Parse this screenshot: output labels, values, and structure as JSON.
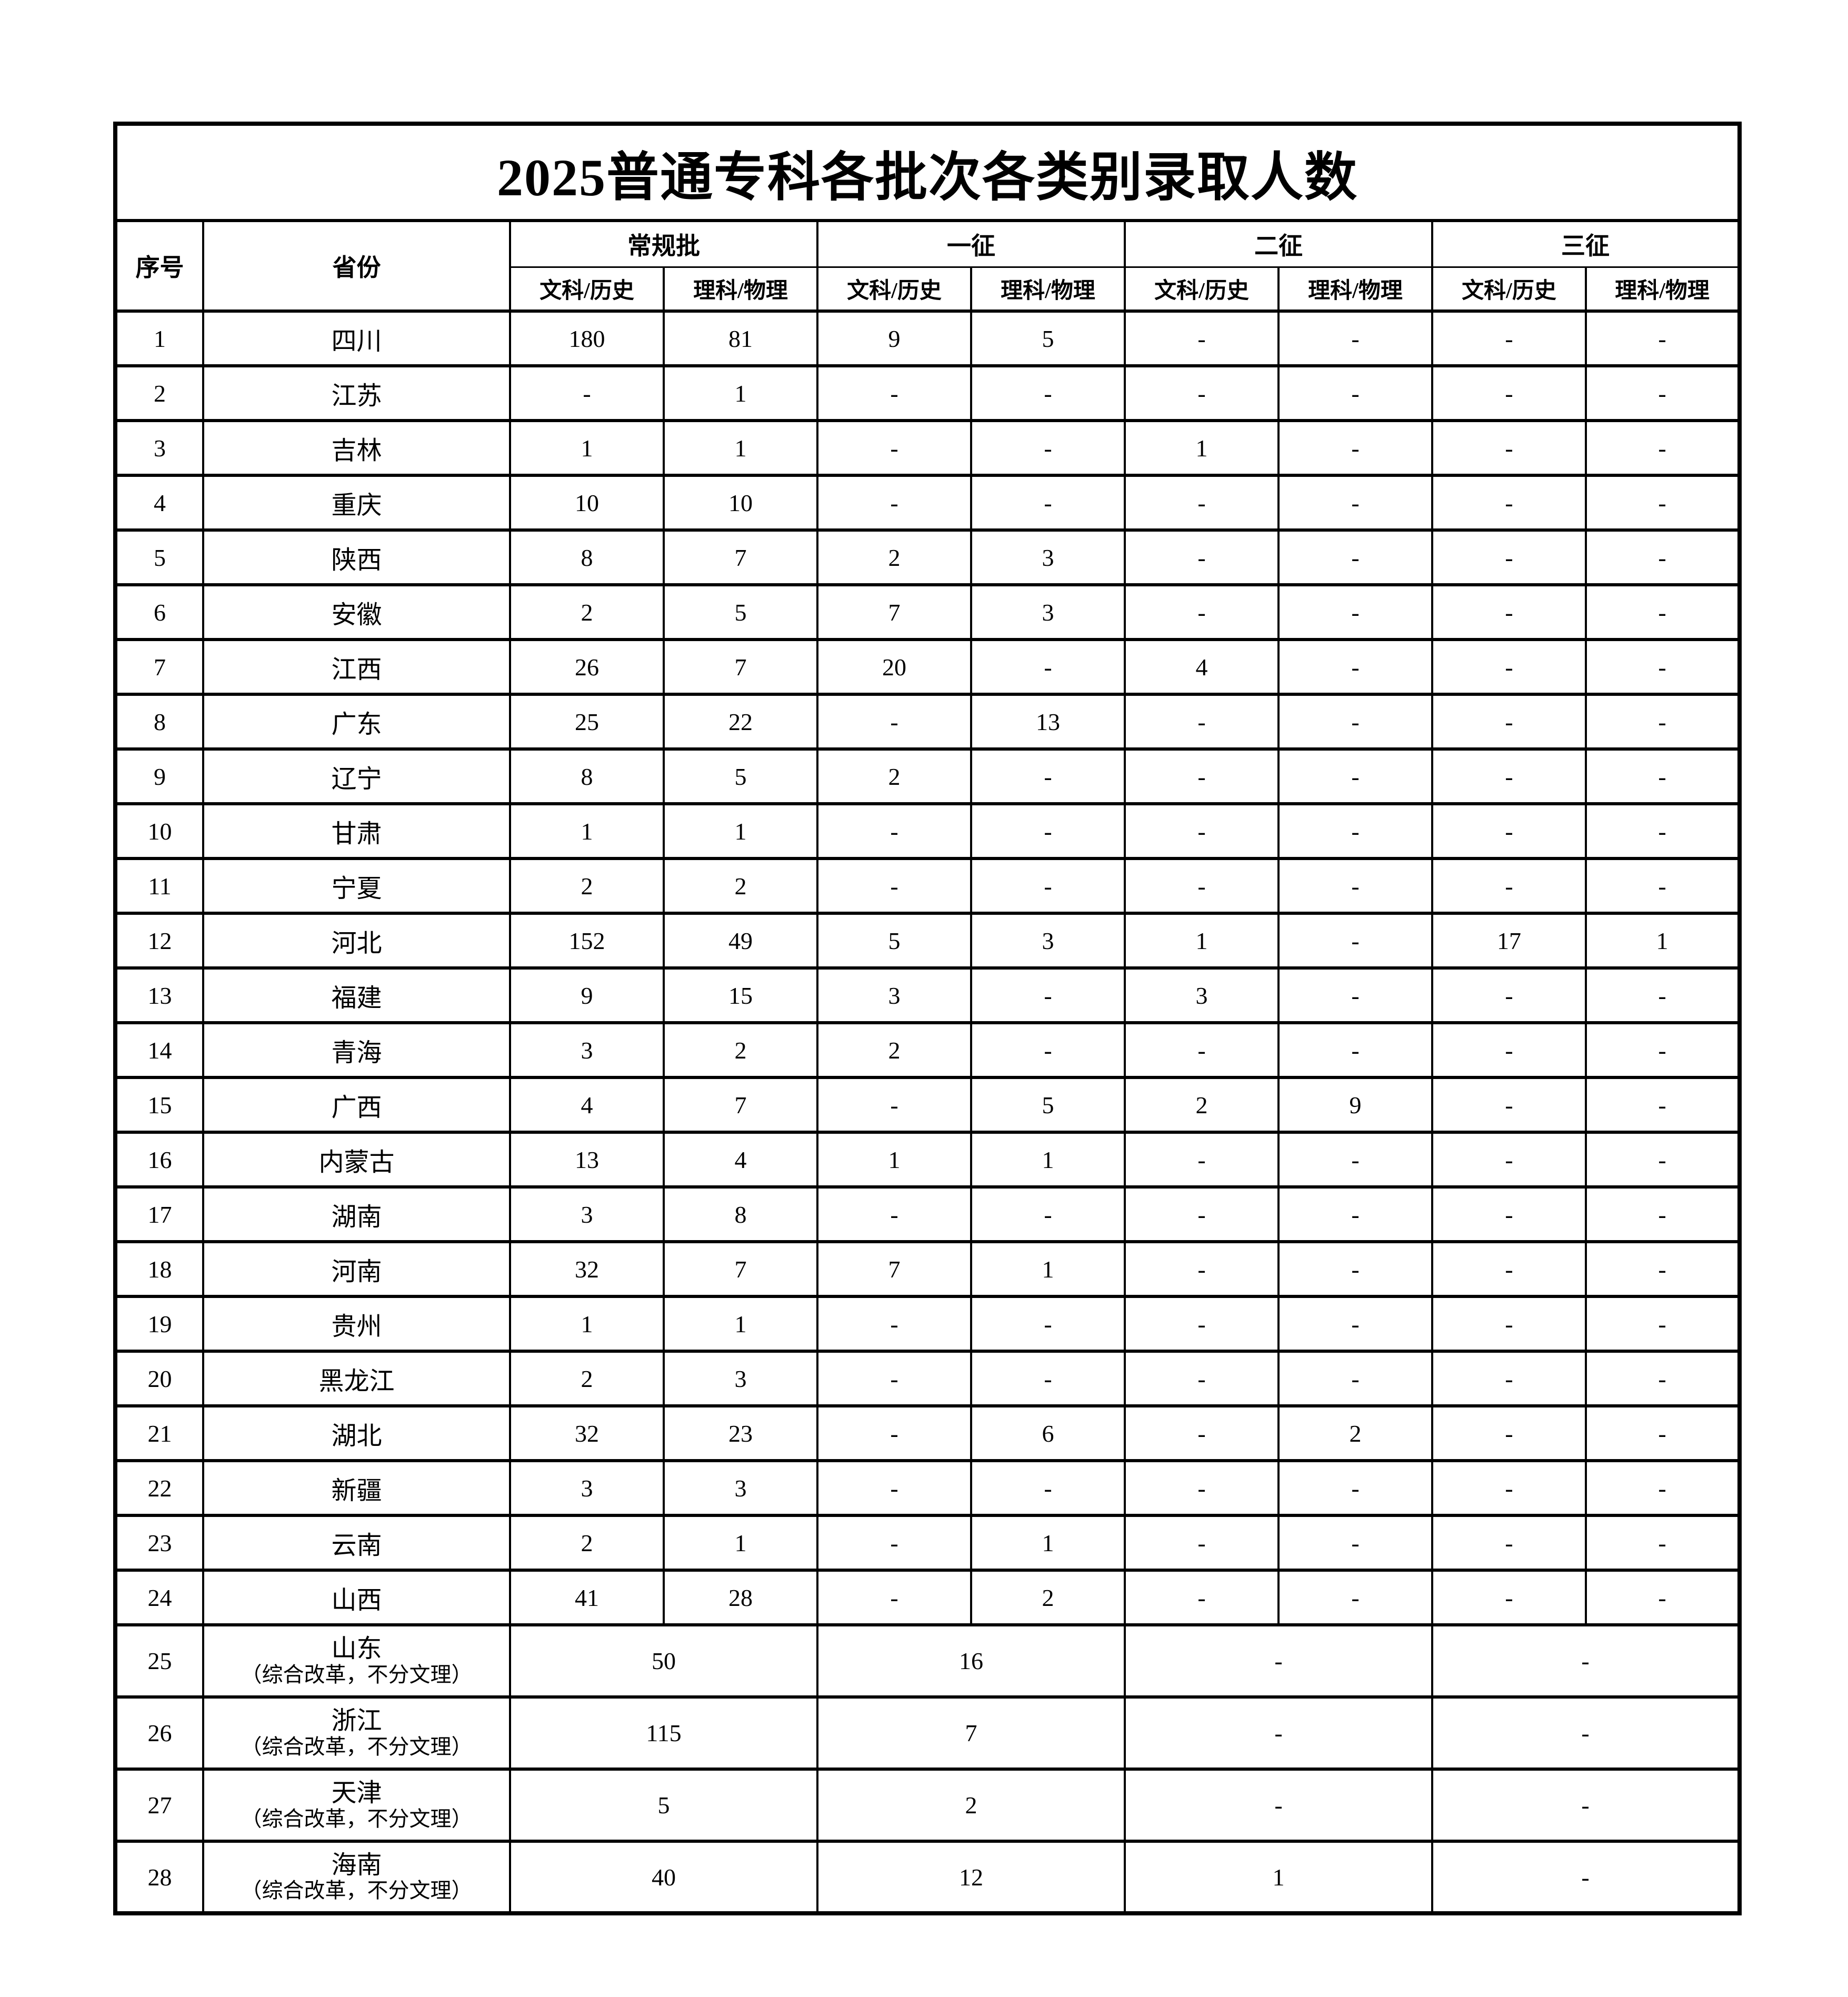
{
  "title": "2025普通专科各批次各类别录取人数",
  "columns": {
    "index": "序号",
    "province": "省份",
    "groups": [
      {
        "label": "常规批"
      },
      {
        "label": "一征"
      },
      {
        "label": "二征"
      },
      {
        "label": "三征"
      }
    ],
    "sub_wen": "文科/历史",
    "sub_li": "理科/物理"
  },
  "rows": [
    {
      "no": "1",
      "province": "四川",
      "values": [
        "180",
        "81",
        "9",
        "5",
        "-",
        "-",
        "-",
        "-"
      ]
    },
    {
      "no": "2",
      "province": "江苏",
      "values": [
        "-",
        "1",
        "-",
        "-",
        "-",
        "-",
        "-",
        "-"
      ]
    },
    {
      "no": "3",
      "province": "吉林",
      "values": [
        "1",
        "1",
        "-",
        "-",
        "1",
        "-",
        "-",
        "-"
      ]
    },
    {
      "no": "4",
      "province": "重庆",
      "values": [
        "10",
        "10",
        "-",
        "-",
        "-",
        "-",
        "-",
        "-"
      ]
    },
    {
      "no": "5",
      "province": "陕西",
      "values": [
        "8",
        "7",
        "2",
        "3",
        "-",
        "-",
        "-",
        "-"
      ]
    },
    {
      "no": "6",
      "province": "安徽",
      "values": [
        "2",
        "5",
        "7",
        "3",
        "-",
        "-",
        "-",
        "-"
      ]
    },
    {
      "no": "7",
      "province": "江西",
      "values": [
        "26",
        "7",
        "20",
        "-",
        "4",
        "-",
        "-",
        "-"
      ]
    },
    {
      "no": "8",
      "province": "广东",
      "values": [
        "25",
        "22",
        "-",
        "13",
        "-",
        "-",
        "-",
        "-"
      ]
    },
    {
      "no": "9",
      "province": "辽宁",
      "values": [
        "8",
        "5",
        "2",
        "-",
        "-",
        "-",
        "-",
        "-"
      ]
    },
    {
      "no": "10",
      "province": "甘肃",
      "values": [
        "1",
        "1",
        "-",
        "-",
        "-",
        "-",
        "-",
        "-"
      ]
    },
    {
      "no": "11",
      "province": "宁夏",
      "values": [
        "2",
        "2",
        "-",
        "-",
        "-",
        "-",
        "-",
        "-"
      ]
    },
    {
      "no": "12",
      "province": "河北",
      "values": [
        "152",
        "49",
        "5",
        "3",
        "1",
        "-",
        "17",
        "1"
      ]
    },
    {
      "no": "13",
      "province": "福建",
      "values": [
        "9",
        "15",
        "3",
        "-",
        "3",
        "-",
        "-",
        "-"
      ]
    },
    {
      "no": "14",
      "province": "青海",
      "values": [
        "3",
        "2",
        "2",
        "-",
        "-",
        "-",
        "-",
        "-"
      ]
    },
    {
      "no": "15",
      "province": "广西",
      "values": [
        "4",
        "7",
        "-",
        "5",
        "2",
        "9",
        "-",
        "-"
      ]
    },
    {
      "no": "16",
      "province": "内蒙古",
      "values": [
        "13",
        "4",
        "1",
        "1",
        "-",
        "-",
        "-",
        "-"
      ]
    },
    {
      "no": "17",
      "province": "湖南",
      "values": [
        "3",
        "8",
        "-",
        "-",
        "-",
        "-",
        "-",
        "-"
      ]
    },
    {
      "no": "18",
      "province": "河南",
      "values": [
        "32",
        "7",
        "7",
        "1",
        "-",
        "-",
        "-",
        "-"
      ]
    },
    {
      "no": "19",
      "province": "贵州",
      "values": [
        "1",
        "1",
        "-",
        "-",
        "-",
        "-",
        "-",
        "-"
      ]
    },
    {
      "no": "20",
      "province": "黑龙江",
      "values": [
        "2",
        "3",
        "-",
        "-",
        "-",
        "-",
        "-",
        "-"
      ]
    },
    {
      "no": "21",
      "province": "湖北",
      "values": [
        "32",
        "23",
        "-",
        "6",
        "-",
        "2",
        "-",
        "-"
      ]
    },
    {
      "no": "22",
      "province": "新疆",
      "values": [
        "3",
        "3",
        "-",
        "-",
        "-",
        "-",
        "-",
        "-"
      ]
    },
    {
      "no": "23",
      "province": "云南",
      "values": [
        "2",
        "1",
        "-",
        "1",
        "-",
        "-",
        "-",
        "-"
      ]
    },
    {
      "no": "24",
      "province": "山西",
      "values": [
        "41",
        "28",
        "-",
        "2",
        "-",
        "-",
        "-",
        "-"
      ]
    }
  ],
  "merged_rows": [
    {
      "no": "25",
      "province": "山东",
      "note": "（综合改革，不分文理）",
      "values": [
        "50",
        "16",
        "-",
        "-"
      ]
    },
    {
      "no": "26",
      "province": "浙江",
      "note": "（综合改革，不分文理）",
      "values": [
        "115",
        "7",
        "-",
        "-"
      ]
    },
    {
      "no": "27",
      "province": "天津",
      "note": "（综合改革，不分文理）",
      "values": [
        "5",
        "2",
        "-",
        "-"
      ]
    },
    {
      "no": "28",
      "province": "海南",
      "note": "（综合改革，不分文理）",
      "values": [
        "40",
        "12",
        "1",
        "-"
      ]
    }
  ]
}
